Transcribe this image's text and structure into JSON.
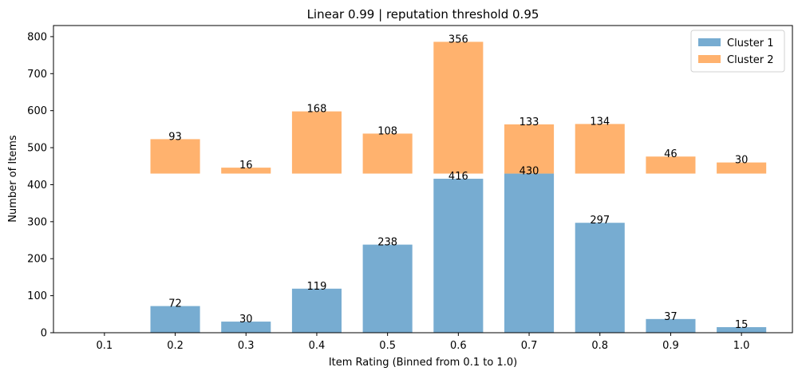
{
  "chart_data": {
    "type": "bar",
    "title": "Linear 0.99 | reputation threshold 0.95",
    "xlabel": "Item Rating (Binned from 0.1 to 1.0)",
    "ylabel": "Number of Items",
    "categories": [
      "0.1",
      "0.2",
      "0.3",
      "0.4",
      "0.5",
      "0.6",
      "0.7",
      "0.8",
      "0.9",
      "1.0"
    ],
    "ylim": [
      0,
      830
    ],
    "yticks": [
      0,
      100,
      200,
      300,
      400,
      500,
      600,
      700,
      800
    ],
    "grid": false,
    "legend_position": "top-right",
    "series": [
      {
        "name": "Cluster 1",
        "color": "#77acd1",
        "values": [
          0,
          72,
          30,
          119,
          238,
          416,
          430,
          297,
          37,
          15
        ],
        "bar_bottom": 0
      },
      {
        "name": "Cluster 2",
        "color": "#ffb26e",
        "values": [
          0,
          93,
          16,
          168,
          108,
          356,
          133,
          134,
          46,
          30
        ],
        "bar_bottom": 430
      }
    ],
    "data_labels": [
      {
        "series": 0,
        "labels": [
          "",
          "72",
          "30",
          "119",
          "238",
          "416",
          "430",
          "297",
          "37",
          "15"
        ]
      },
      {
        "series": 1,
        "labels": [
          "",
          "93",
          "16",
          "168",
          "108",
          "356",
          "133",
          "134",
          "46",
          "30"
        ]
      }
    ]
  }
}
